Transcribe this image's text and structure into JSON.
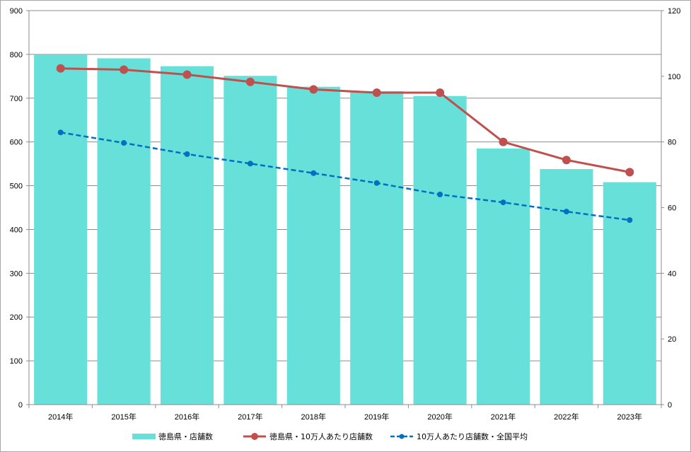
{
  "chart_data": {
    "type": "bar",
    "categories": [
      "2014年",
      "2015年",
      "2016年",
      "2017年",
      "2018年",
      "2019年",
      "2020年",
      "2021年",
      "2022年",
      "2023年"
    ],
    "y_left": {
      "lim": [
        0,
        900
      ],
      "ticks": [
        0,
        100,
        200,
        300,
        400,
        500,
        600,
        700,
        800,
        900
      ]
    },
    "y_right": {
      "lim": [
        0,
        120
      ],
      "ticks": [
        0,
        20,
        40,
        60,
        80,
        100,
        120
      ]
    },
    "grid": true,
    "legend_position": "bottom",
    "series": [
      {
        "name": "徳島県・店舗数",
        "type": "bar",
        "axis": "left",
        "color": "#66e0d8",
        "values": [
          800,
          791,
          773,
          751,
          726,
          716,
          705,
          585,
          538,
          508
        ]
      },
      {
        "name": "徳島県・10万人あたり店舗数",
        "type": "line",
        "axis": "right",
        "color": "#c0504d",
        "dashed": false,
        "values": [
          102.4,
          102.0,
          100.5,
          98.3,
          96.0,
          95.0,
          95.0,
          80.0,
          74.5,
          70.8
        ]
      },
      {
        "name": "10万人あたり店舗数・全国平均",
        "type": "line",
        "axis": "right",
        "color": "#0070c0",
        "dashed": true,
        "values": [
          82.9,
          79.7,
          76.3,
          73.4,
          70.5,
          67.5,
          64.0,
          61.6,
          58.8,
          56.2
        ]
      }
    ]
  }
}
